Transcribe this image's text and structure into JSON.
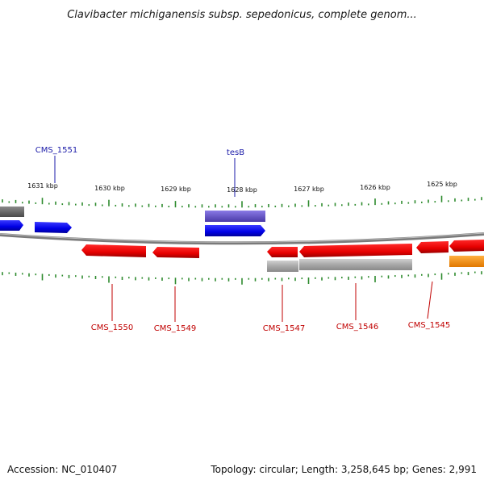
{
  "title": "Clavibacter michiganensis subsp. sepedonicus, complete genom...",
  "footer": {
    "accession": "Accession: NC_010407",
    "summary": "Topology: circular; Length: 3,258,645 bp; Genes: 2,991"
  },
  "colors": {
    "backbone": "#8a8a8a",
    "tick": "#2e8b2e",
    "forward_gene": "#0000ee",
    "reverse_gene": "#ee0000",
    "gene_label_forward": "#1a1aa8",
    "gene_label_reverse": "#c00000",
    "rna": "#9a9a9a",
    "feature_purple": "#6a5acd",
    "feature_orange": "#ff8c00"
  },
  "ruler": {
    "unit": "kbp",
    "labels": [
      "1631 kbp",
      "1630 kbp",
      "1629 kbp",
      "1628 kbp",
      "1627 kbp",
      "1626 kbp",
      "1625 kbp"
    ]
  },
  "genes": {
    "forward_labeled": [
      "CMS_1551",
      "tesB"
    ],
    "reverse_labeled": [
      "CMS_1550",
      "CMS_1549",
      "CMS_1547",
      "CMS_1546",
      "CMS_1545"
    ]
  }
}
